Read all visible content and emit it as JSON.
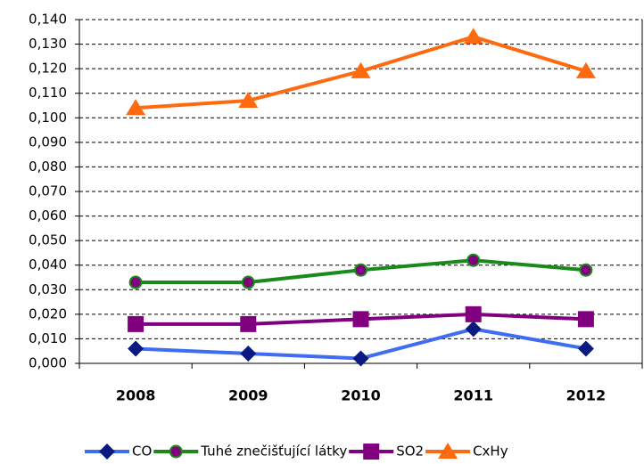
{
  "chart_data": {
    "type": "line",
    "categories": [
      "2008",
      "2009",
      "2010",
      "2011",
      "2012"
    ],
    "series": [
      {
        "name": "CO",
        "color": "#3f6cf0",
        "marker": "diamond",
        "marker_color": "#0a1a80",
        "values": [
          0.006,
          0.004,
          0.002,
          0.014,
          0.006
        ]
      },
      {
        "name": "Tuhé znečišťující látky",
        "color": "#1a8a1a",
        "marker": "circle",
        "marker_color": "#800080",
        "values": [
          0.033,
          0.033,
          0.038,
          0.042,
          0.038
        ]
      },
      {
        "name": "SO2",
        "color": "#800080",
        "marker": "square",
        "marker_color": "#800080",
        "values": [
          0.016,
          0.016,
          0.018,
          0.02,
          0.018
        ]
      },
      {
        "name": "CxHy",
        "color": "#ff6a10",
        "marker": "triangle",
        "marker_color": "#ff6a10",
        "values": [
          0.104,
          0.107,
          0.119,
          0.133,
          0.119
        ]
      }
    ],
    "ylim": [
      0,
      0.14
    ],
    "yticks": [
      {
        "value": 0,
        "label": "0,000"
      },
      {
        "value": 0.01,
        "label": "0,010"
      },
      {
        "value": 0.02,
        "label": "0,020"
      },
      {
        "value": 0.03,
        "label": "0,030"
      },
      {
        "value": 0.04,
        "label": "0,040"
      },
      {
        "value": 0.05,
        "label": "0,050"
      },
      {
        "value": 0.06,
        "label": "0,060"
      },
      {
        "value": 0.07,
        "label": "0,070"
      },
      {
        "value": 0.08,
        "label": "0,080"
      },
      {
        "value": 0.09,
        "label": "0,090"
      },
      {
        "value": 0.1,
        "label": "0,100"
      },
      {
        "value": 0.11,
        "label": "0,110"
      },
      {
        "value": 0.12,
        "label": "0,120"
      },
      {
        "value": 0.13,
        "label": "0,130"
      },
      {
        "value": 0.14,
        "label": "0,140"
      }
    ],
    "grid": true,
    "legend": "bottom"
  }
}
